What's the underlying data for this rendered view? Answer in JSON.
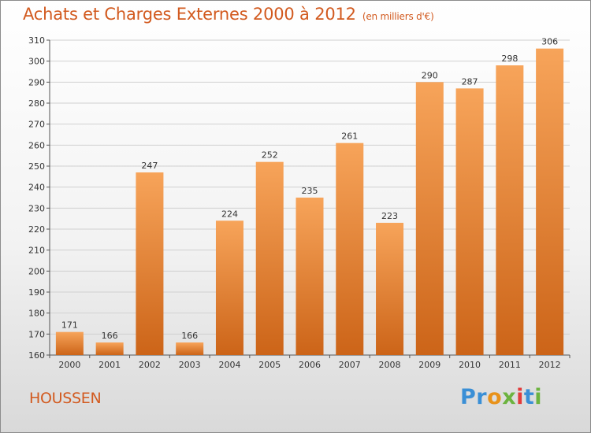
{
  "header": {
    "title": "Achats et Charges Externes 2000 à 2012",
    "subtitle": "(en milliers d'€)"
  },
  "footer": {
    "commune": "HOUSSEN",
    "logo_letters": [
      {
        "ch": "P",
        "color": "#3a8fd6"
      },
      {
        "ch": "r",
        "color": "#3a8fd6"
      },
      {
        "ch": "o",
        "color": "#e8921a"
      },
      {
        "ch": "x",
        "color": "#6cb33f"
      },
      {
        "ch": "i",
        "color": "#e23b3b"
      },
      {
        "ch": "t",
        "color": "#3a8fd6"
      },
      {
        "ch": "i",
        "color": "#6cb33f"
      }
    ]
  },
  "colors": {
    "accent": "#d25a1f",
    "bar_top": "#f7a45a",
    "bar_bottom": "#cc6418",
    "grid": "#d0d0d0"
  },
  "chart_data": {
    "type": "bar",
    "categories": [
      "2000",
      "2001",
      "2002",
      "2003",
      "2004",
      "2005",
      "2006",
      "2007",
      "2008",
      "2009",
      "2010",
      "2011",
      "2012"
    ],
    "values": [
      171,
      166,
      247,
      166,
      224,
      252,
      235,
      261,
      223,
      290,
      287,
      298,
      306
    ],
    "ylim": [
      160,
      310
    ],
    "yticks": [
      160,
      170,
      180,
      190,
      200,
      210,
      220,
      230,
      240,
      250,
      260,
      270,
      280,
      290,
      300,
      310
    ],
    "grid": true,
    "data_labels": true,
    "legend": "none"
  }
}
